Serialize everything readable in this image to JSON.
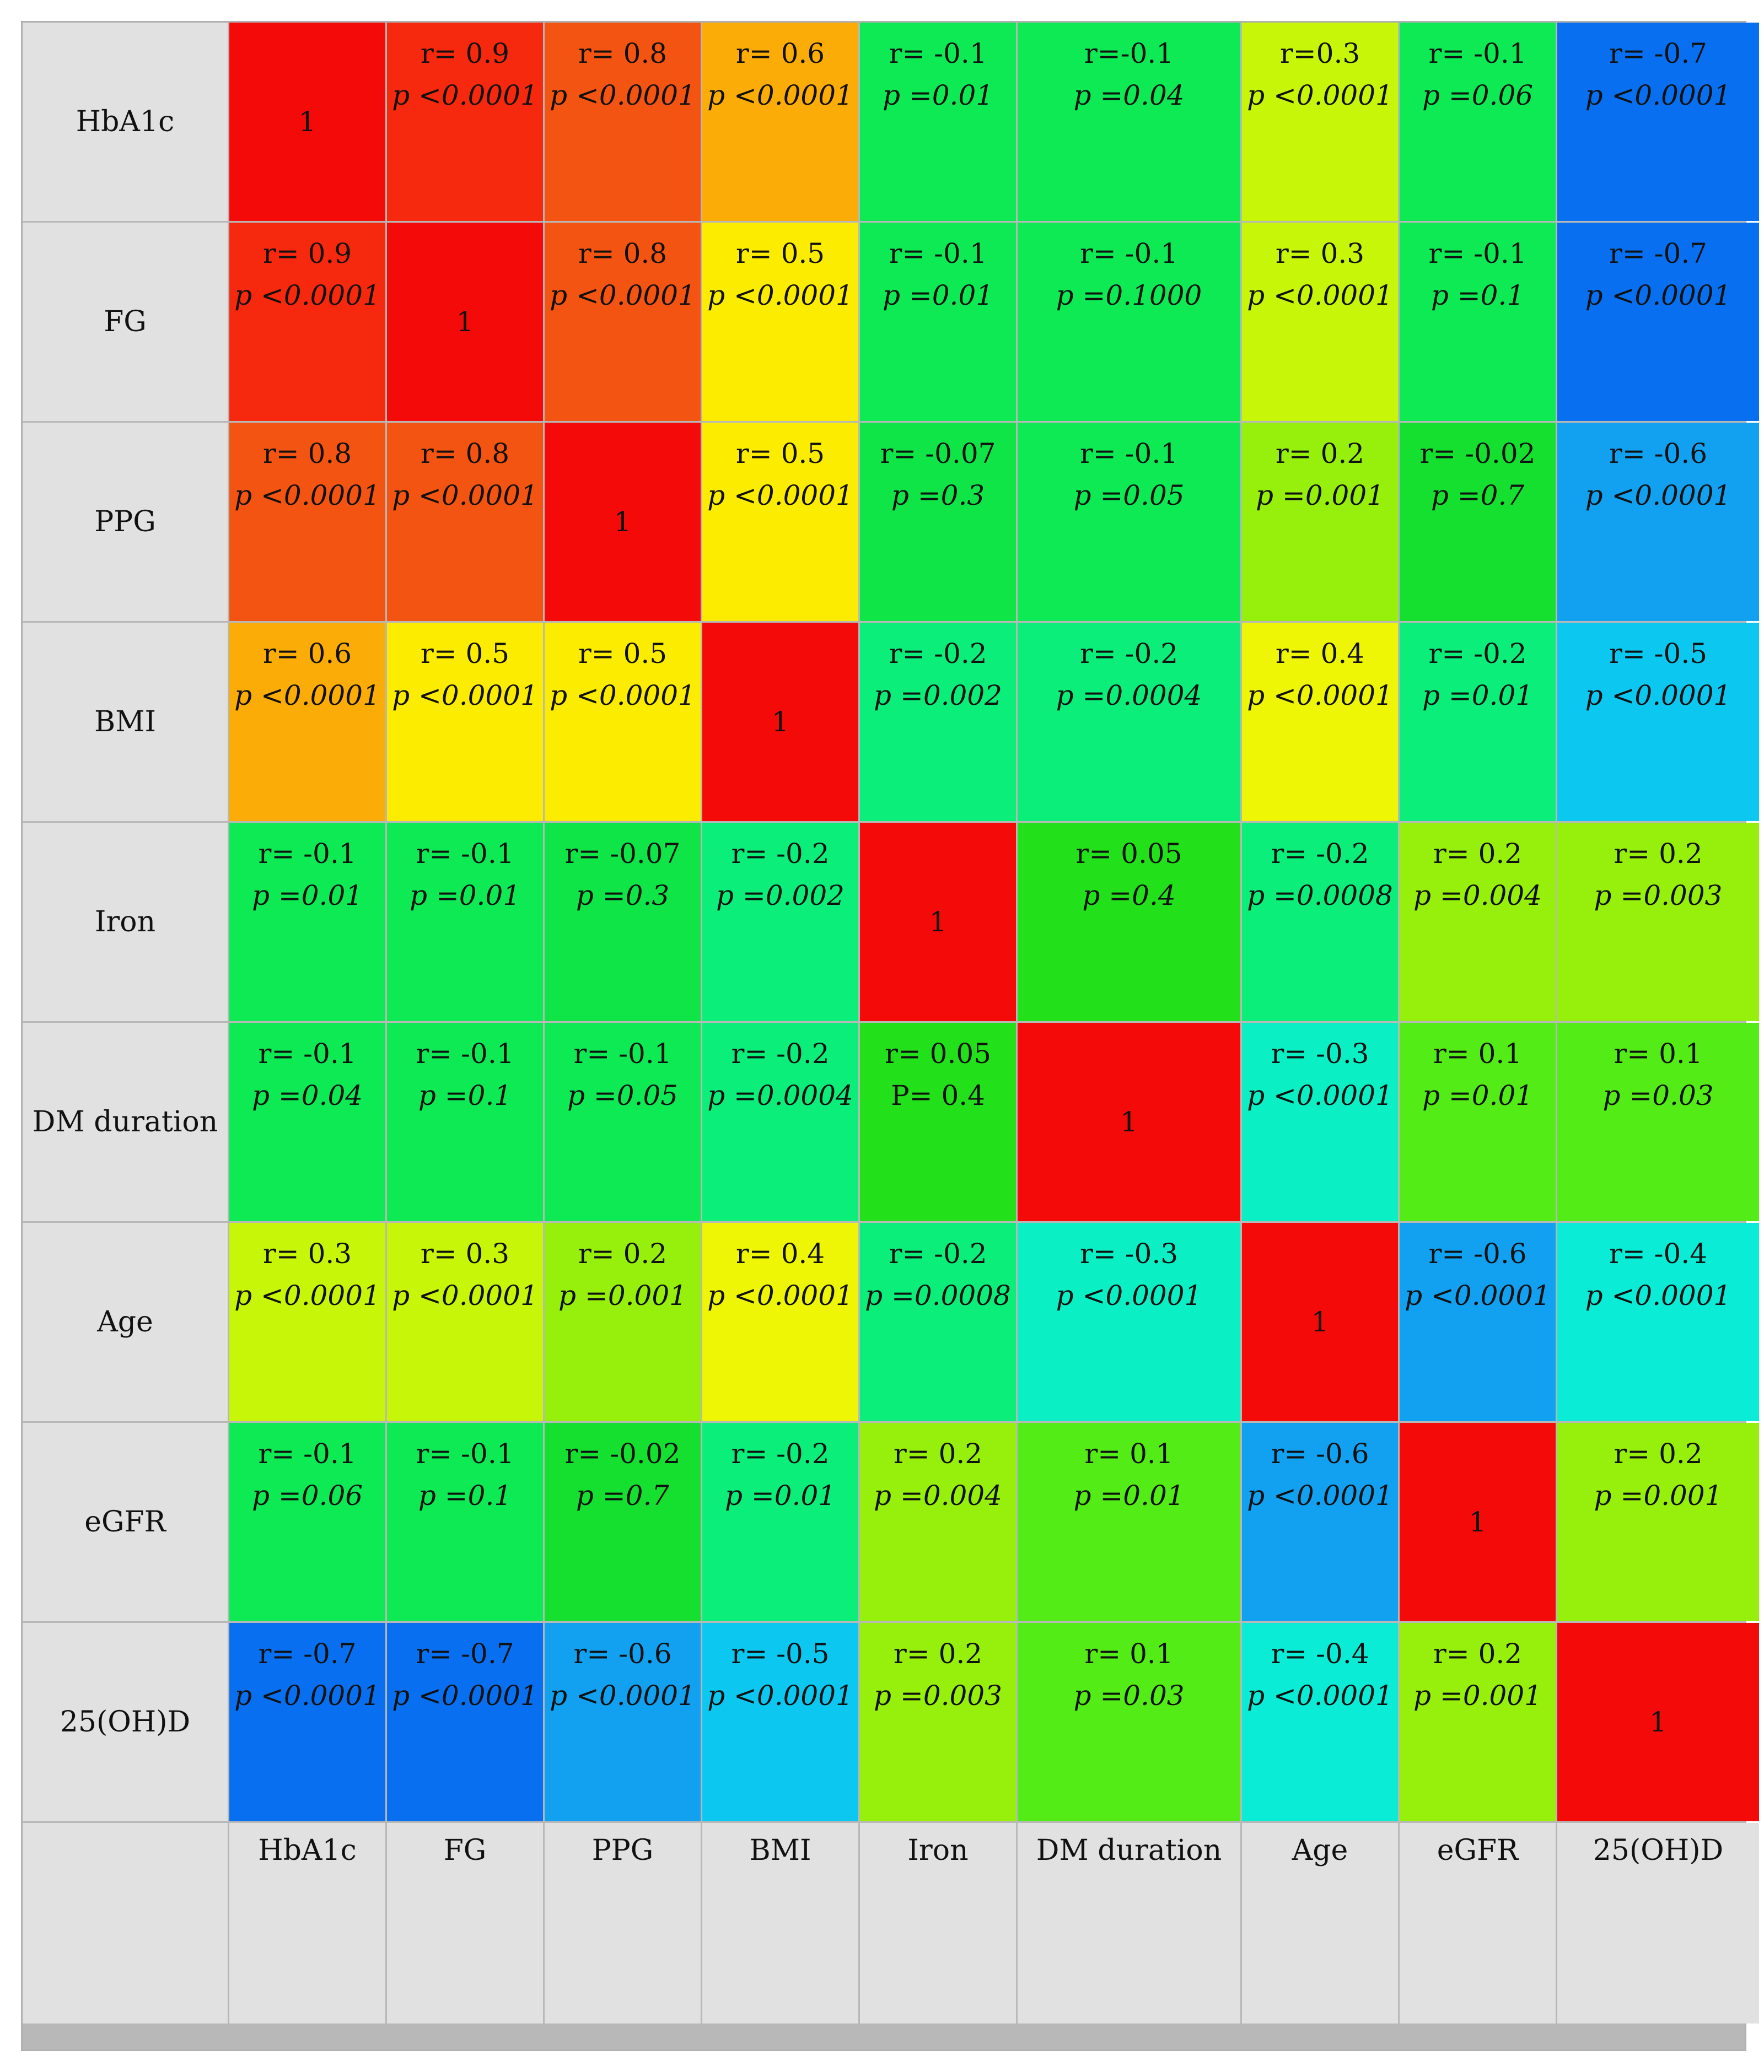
{
  "chart_data": {
    "type": "heatmap",
    "variables": [
      "HbA1c",
      "FG",
      "PPG",
      "BMI",
      "Iron",
      "DM duration",
      "Age",
      "eGFR",
      "25(OH)D"
    ],
    "diagonal_label": "1",
    "colors": {
      "header_bg": "#e1e1e1",
      "grid_line": "#b8b8b8",
      "diagonal": "#f50a0a",
      "scale_note": "jet-like: blue (r=-0.7) through cyan, green (r~0), yellow, orange to red (r=1)"
    },
    "cells": [
      [
        {
          "r_text": "1"
        },
        {
          "r": 0.9,
          "r_text": "r= 0.9",
          "p_text": "p <0.0001"
        },
        {
          "r": 0.8,
          "r_text": "r= 0.8",
          "p_text": "p <0.0001"
        },
        {
          "r": 0.6,
          "r_text": "r= 0.6",
          "p_text": "p <0.0001"
        },
        {
          "r": -0.1,
          "r_text": "r= -0.1",
          "p_text": "p =0.01"
        },
        {
          "r": -0.1,
          "r_text": "r=-0.1",
          "p_text": "p =0.04"
        },
        {
          "r": 0.3,
          "r_text": "r=0.3",
          "p_text": "p <0.0001"
        },
        {
          "r": -0.1,
          "r_text": "r= -0.1",
          "p_text": "p =0.06"
        },
        {
          "r": -0.7,
          "r_text": "r= -0.7",
          "p_text": "p <0.0001"
        }
      ],
      [
        {
          "r": 0.9,
          "r_text": "r= 0.9",
          "p_text": "p <0.0001"
        },
        {
          "r_text": "1"
        },
        {
          "r": 0.8,
          "r_text": "r= 0.8",
          "p_text": "p <0.0001"
        },
        {
          "r": 0.5,
          "r_text": "r= 0.5",
          "p_text": "p <0.0001"
        },
        {
          "r": -0.1,
          "r_text": "r= -0.1",
          "p_text": "p =0.01"
        },
        {
          "r": -0.1,
          "r_text": "r= -0.1",
          "p_text": "p =0.1000"
        },
        {
          "r": 0.3,
          "r_text": "r= 0.3",
          "p_text": "p <0.0001"
        },
        {
          "r": -0.1,
          "r_text": "r= -0.1",
          "p_text": "p =0.1"
        },
        {
          "r": -0.7,
          "r_text": "r= -0.7",
          "p_text": "p <0.0001"
        }
      ],
      [
        {
          "r": 0.8,
          "r_text": "r= 0.8",
          "p_text": "p <0.0001"
        },
        {
          "r": 0.8,
          "r_text": "r= 0.8",
          "p_text": "p <0.0001"
        },
        {
          "r_text": "1"
        },
        {
          "r": 0.5,
          "r_text": "r= 0.5",
          "p_text": "p <0.0001"
        },
        {
          "r": -0.07,
          "r_text": "r= -0.07",
          "p_text": "p =0.3"
        },
        {
          "r": -0.1,
          "r_text": "r= -0.1",
          "p_text": "p =0.05"
        },
        {
          "r": 0.2,
          "r_text": "r= 0.2",
          "p_text": "p =0.001"
        },
        {
          "r": -0.02,
          "r_text": "r= -0.02",
          "p_text": "p =0.7"
        },
        {
          "r": -0.6,
          "r_text": "r= -0.6",
          "p_text": "p <0.0001"
        }
      ],
      [
        {
          "r": 0.6,
          "r_text": "r= 0.6",
          "p_text": "p <0.0001"
        },
        {
          "r": 0.5,
          "r_text": "r= 0.5",
          "p_text": "p <0.0001"
        },
        {
          "r": 0.5,
          "r_text": "r= 0.5",
          "p_text": "p <0.0001"
        },
        {
          "r_text": "1"
        },
        {
          "r": -0.2,
          "r_text": "r= -0.2",
          "p_text": "p =0.002"
        },
        {
          "r": -0.2,
          "r_text": "r= -0.2",
          "p_text": "p =0.0004"
        },
        {
          "r": 0.4,
          "r_text": "r= 0.4",
          "p_text": "p <0.0001"
        },
        {
          "r": -0.2,
          "r_text": "r= -0.2",
          "p_text": "p =0.01"
        },
        {
          "r": -0.5,
          "r_text": "r= -0.5",
          "p_text": "p <0.0001"
        }
      ],
      [
        {
          "r": -0.1,
          "r_text": "r= -0.1",
          "p_text": "p =0.01"
        },
        {
          "r": -0.1,
          "r_text": "r= -0.1",
          "p_text": "p =0.01"
        },
        {
          "r": -0.07,
          "r_text": "r= -0.07",
          "p_text": "p =0.3"
        },
        {
          "r": -0.2,
          "r_text": "r= -0.2",
          "p_text": "p =0.002"
        },
        {
          "r_text": "1"
        },
        {
          "r": 0.05,
          "r_text": "r= 0.05",
          "p_text": "p =0.4"
        },
        {
          "r": -0.2,
          "r_text": "r= -0.2",
          "p_text": "p =0.0008"
        },
        {
          "r": 0.2,
          "r_text": "r= 0.2",
          "p_text": "p =0.004"
        },
        {
          "r": 0.2,
          "r_text": "r= 0.2",
          "p_text": "p =0.003"
        }
      ],
      [
        {
          "r": -0.1,
          "r_text": "r= -0.1",
          "p_text": "p =0.04"
        },
        {
          "r": -0.1,
          "r_text": "r= -0.1",
          "p_text": "p =0.1"
        },
        {
          "r": -0.1,
          "r_text": "r= -0.1",
          "p_text": "p =0.05"
        },
        {
          "r": -0.2,
          "r_text": "r= -0.2",
          "p_text": "p =0.0004"
        },
        {
          "r": 0.05,
          "r_text": "r= 0.05",
          "p_text": "P= 0.4"
        },
        {
          "r_text": "1"
        },
        {
          "r": -0.3,
          "r_text": "r= -0.3",
          "p_text": "p <0.0001"
        },
        {
          "r": 0.1,
          "r_text": "r= 0.1",
          "p_text": "p =0.01"
        },
        {
          "r": 0.1,
          "r_text": "r= 0.1",
          "p_text": "p =0.03"
        }
      ],
      [
        {
          "r": 0.3,
          "r_text": "r= 0.3",
          "p_text": "p <0.0001"
        },
        {
          "r": 0.3,
          "r_text": "r= 0.3",
          "p_text": "p <0.0001"
        },
        {
          "r": 0.2,
          "r_text": "r= 0.2",
          "p_text": "p =0.001"
        },
        {
          "r": 0.4,
          "r_text": "r= 0.4",
          "p_text": "p <0.0001"
        },
        {
          "r": -0.2,
          "r_text": "r= -0.2",
          "p_text": "p =0.0008"
        },
        {
          "r": -0.3,
          "r_text": "r= -0.3",
          "p_text": "p <0.0001"
        },
        {
          "r_text": "1"
        },
        {
          "r": -0.6,
          "r_text": "r= -0.6",
          "p_text": "p <0.0001"
        },
        {
          "r": -0.4,
          "r_text": "r= -0.4",
          "p_text": "p <0.0001"
        }
      ],
      [
        {
          "r": -0.1,
          "r_text": "r= -0.1",
          "p_text": "p =0.06"
        },
        {
          "r": -0.1,
          "r_text": "r= -0.1",
          "p_text": "p =0.1"
        },
        {
          "r": -0.02,
          "r_text": "r= -0.02",
          "p_text": "p =0.7"
        },
        {
          "r": -0.2,
          "r_text": "r= -0.2",
          "p_text": "p =0.01"
        },
        {
          "r": 0.2,
          "r_text": "r= 0.2",
          "p_text": "p =0.004"
        },
        {
          "r": 0.1,
          "r_text": "r= 0.1",
          "p_text": "p =0.01"
        },
        {
          "r": -0.6,
          "r_text": "r= -0.6",
          "p_text": "p <0.0001"
        },
        {
          "r_text": "1"
        },
        {
          "r": 0.2,
          "r_text": "r= 0.2",
          "p_text": "p =0.001"
        }
      ],
      [
        {
          "r": -0.7,
          "r_text": "r= -0.7",
          "p_text": "p <0.0001"
        },
        {
          "r": -0.7,
          "r_text": "r= -0.7",
          "p_text": "p <0.0001"
        },
        {
          "r": -0.6,
          "r_text": "r= -0.6",
          "p_text": "p <0.0001"
        },
        {
          "r": -0.5,
          "r_text": "r= -0.5",
          "p_text": "p <0.0001"
        },
        {
          "r": 0.2,
          "r_text": "r= 0.2",
          "p_text": "p =0.003"
        },
        {
          "r": 0.1,
          "r_text": "r= 0.1",
          "p_text": "p =0.03"
        },
        {
          "r": -0.4,
          "r_text": "r= -0.4",
          "p_text": "p <0.0001"
        },
        {
          "r": 0.2,
          "r_text": "r= 0.2",
          "p_text": "p =0.001"
        },
        {
          "r_text": "1"
        }
      ]
    ]
  }
}
